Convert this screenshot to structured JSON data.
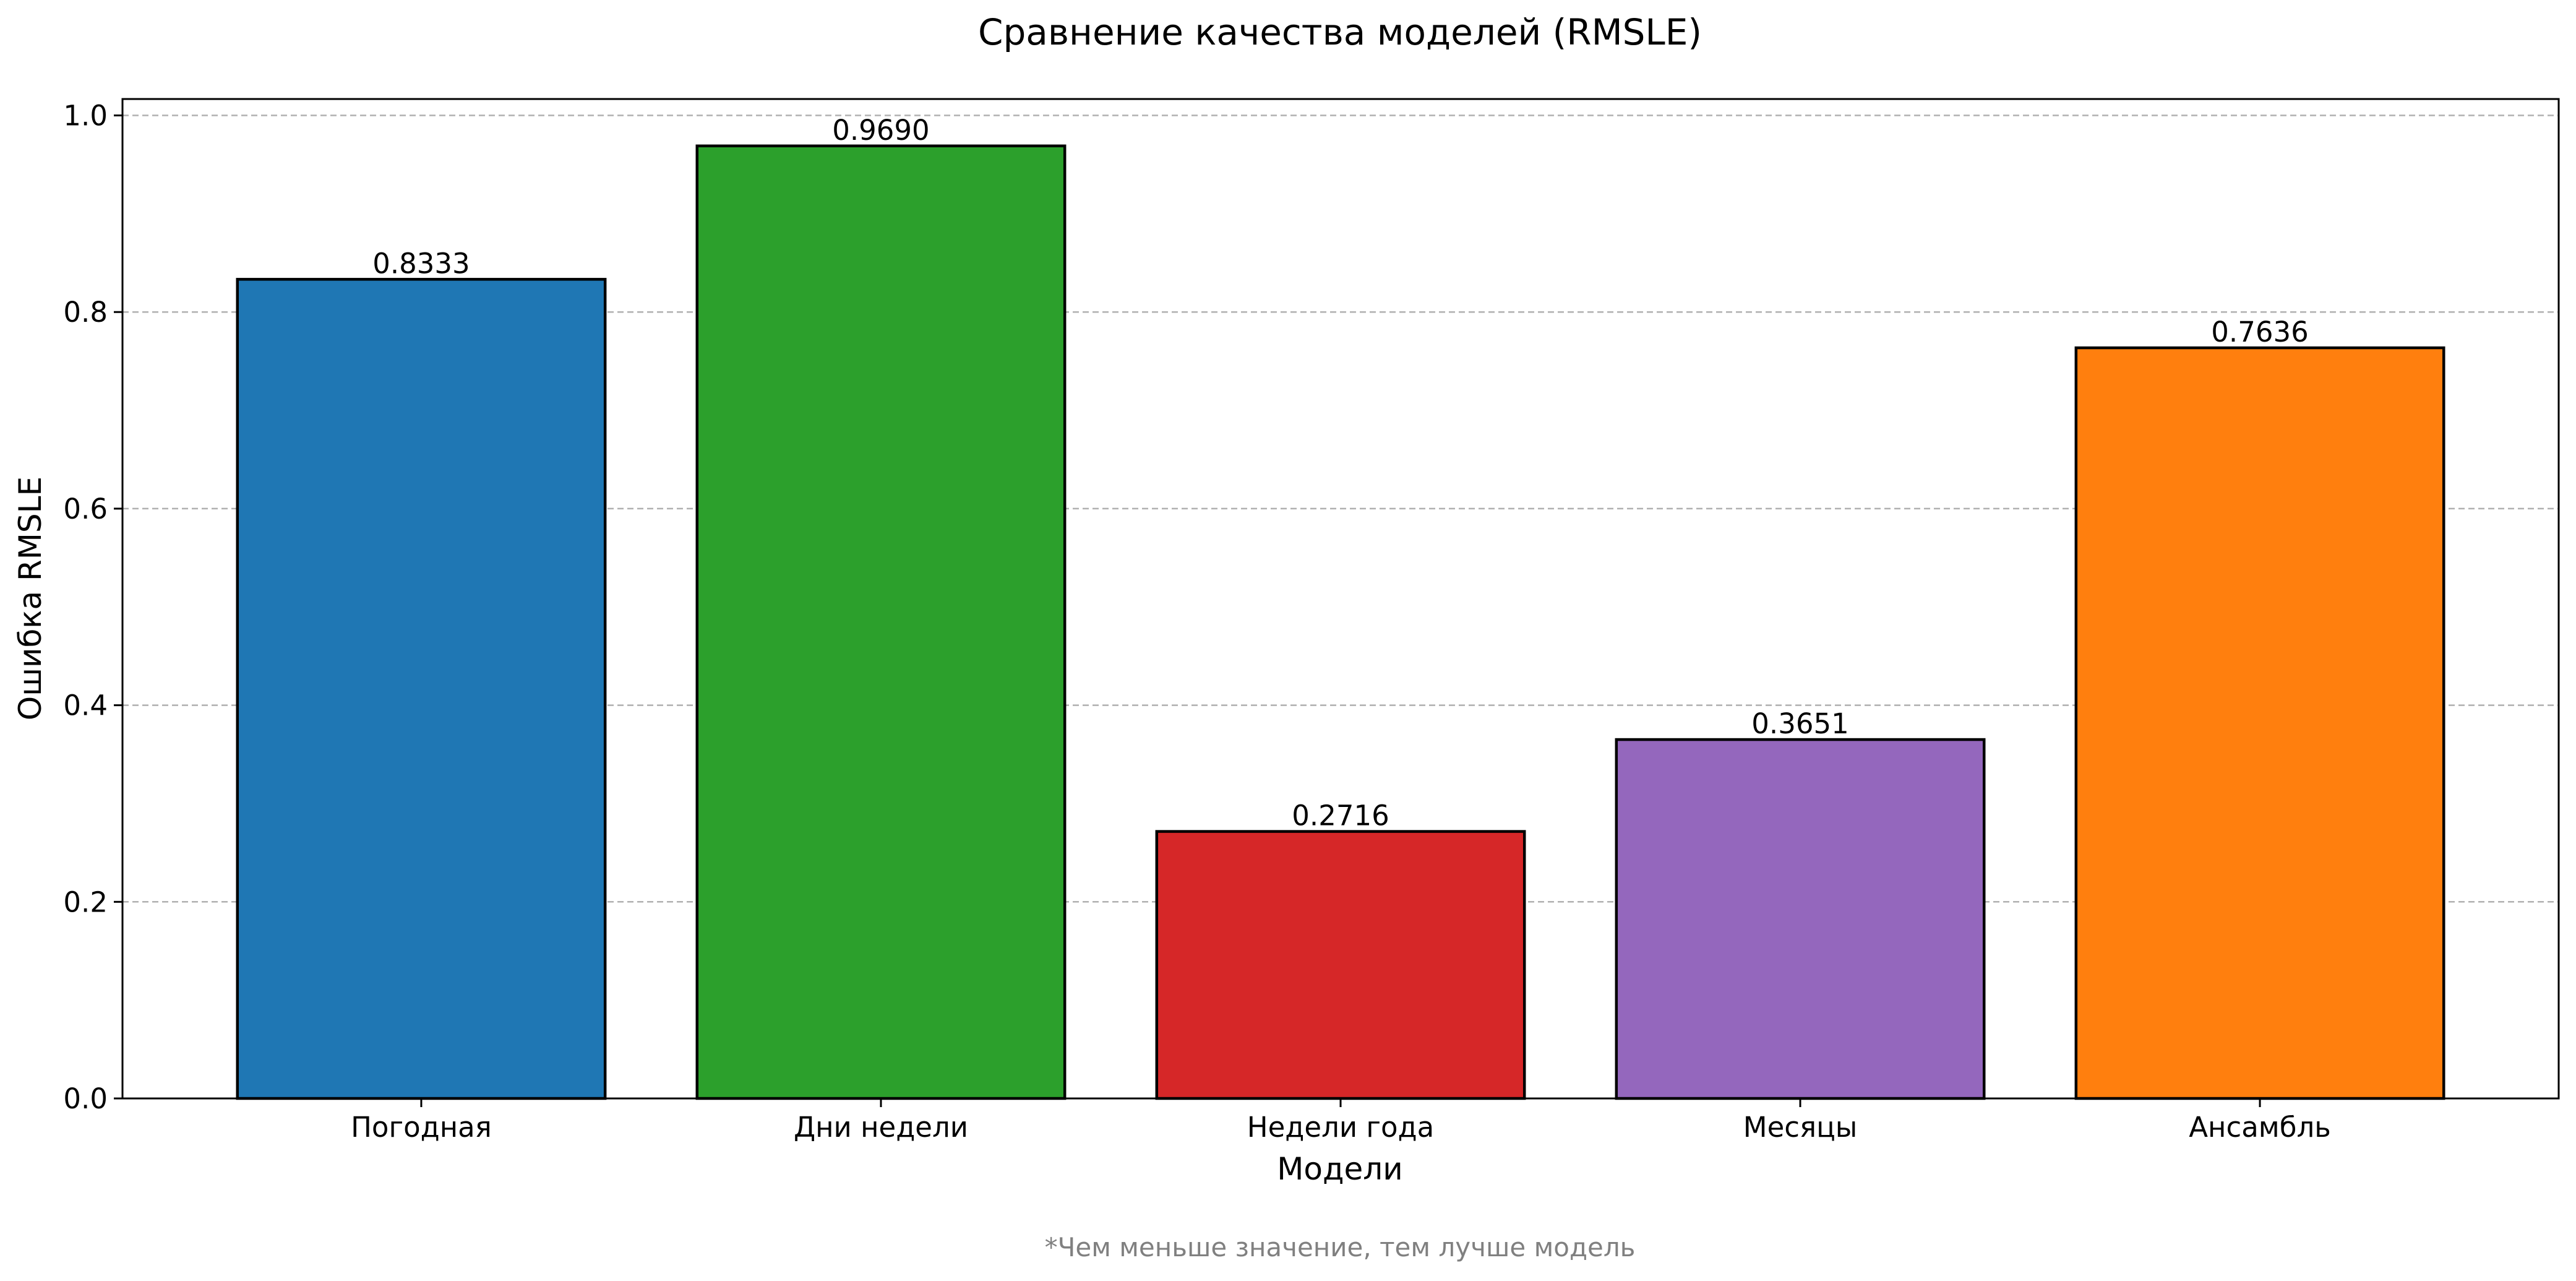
{
  "chart_data": {
    "type": "bar",
    "title": "Сравнение качества моделей (RMSLE)",
    "xlabel": "Модели",
    "ylabel": "Ошибка RMSLE",
    "categories": [
      "Погодная",
      "Дни недели",
      "Недели года",
      "Месяцы",
      "Ансамбль"
    ],
    "values": [
      0.8333,
      0.969,
      0.2716,
      0.3651,
      0.7636
    ],
    "value_labels": [
      "0.8333",
      "0.9690",
      "0.2716",
      "0.3651",
      "0.7636"
    ],
    "colors": [
      "#1f77b4",
      "#2ca02c",
      "#d62728",
      "#9467bd",
      "#ff7f0e"
    ],
    "ylim": [
      0,
      1.0
    ],
    "yticks": [
      0.0,
      0.2,
      0.4,
      0.6,
      0.8,
      1.0
    ],
    "ytick_labels": [
      "0.0",
      "0.2",
      "0.4",
      "0.6",
      "0.8",
      "1.0"
    ],
    "grid": "y-dashed",
    "legend": "none",
    "footnote": "*Чем меньше значение, тем лучше модель"
  }
}
